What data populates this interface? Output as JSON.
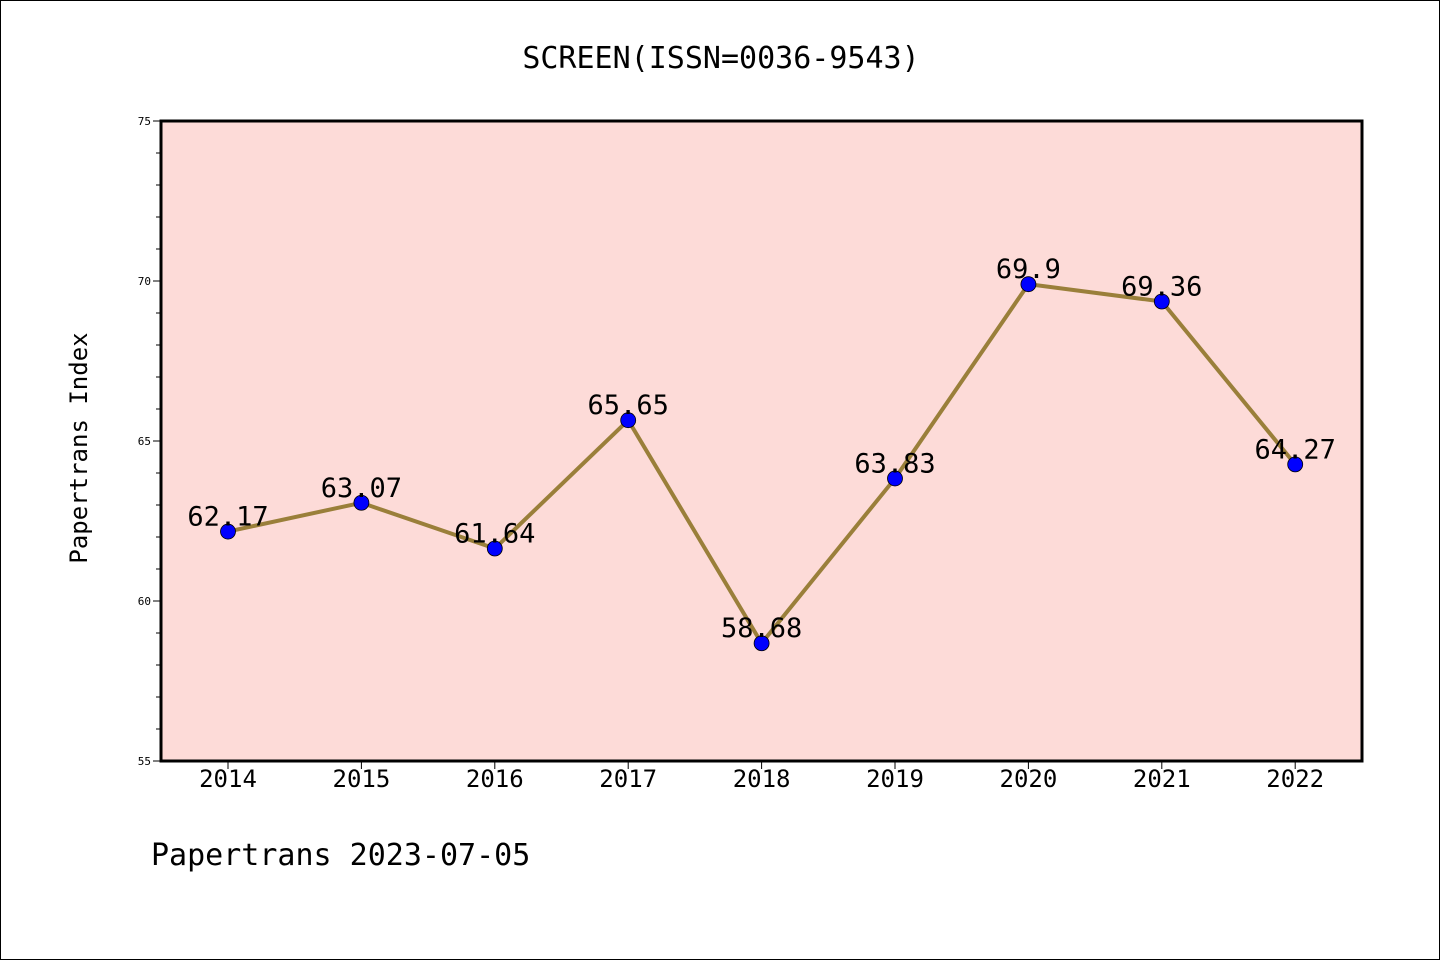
{
  "chart_data": {
    "type": "line",
    "title": "SCREEN(ISSN=0036-9543)",
    "xlabel": "",
    "ylabel": "Papertrans Index",
    "categories": [
      "2014",
      "2015",
      "2016",
      "2017",
      "2018",
      "2019",
      "2020",
      "2021",
      "2022"
    ],
    "series": [
      {
        "values": [
          62.17,
          63.07,
          61.64,
          65.65,
          58.68,
          63.83,
          69.9,
          69.36,
          64.27
        ],
        "labels": [
          "62.17",
          "63.07",
          "61.64",
          "65.65",
          "58.68",
          "63.83",
          "69.9",
          "69.36",
          "64.27"
        ],
        "line_color": "#9a7f3a",
        "marker_color": "#0000ff"
      }
    ],
    "ylim": [
      55,
      75
    ],
    "yticks": [
      55,
      60,
      65,
      70,
      75
    ],
    "y_minor_step": 1,
    "plot_background": "#fddbd8",
    "grid": false,
    "legend": "none"
  },
  "footer": {
    "text": "Papertrans 2023-07-05"
  }
}
